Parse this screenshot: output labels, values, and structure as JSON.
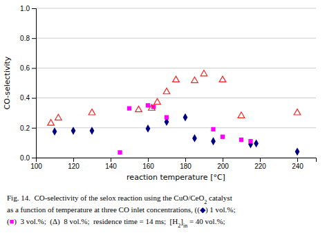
{
  "chart_data": {
    "type": "scatter",
    "xlabel": "reaction temperature [°C]",
    "ylabel": "CO-selectivity",
    "xlim": [
      100,
      250
    ],
    "ylim": [
      0,
      1.0
    ],
    "xticks": [
      100,
      120,
      140,
      160,
      180,
      200,
      220,
      240
    ],
    "yticks": [
      {
        "value": 0,
        "label": "0.0"
      },
      0.2,
      0.4,
      0.6,
      0.8,
      {
        "value": 1.0,
        "label": "1.0"
      }
    ],
    "grid": "y",
    "series": [
      {
        "color": "#000080",
        "marker": "diamond",
        "x": [
          110,
          120,
          130,
          160,
          170,
          180,
          185,
          195,
          215,
          218,
          240
        ],
        "values": [
          0.175,
          0.18,
          0.18,
          0.195,
          0.24,
          0.27,
          0.13,
          0.11,
          0.09,
          0.095,
          0.04
        ]
      },
      {
        "color": "#FF00FF",
        "marker": "square",
        "x": [
          145,
          150,
          160,
          163,
          170,
          195,
          200,
          210,
          215
        ],
        "values": [
          0.035,
          0.33,
          0.35,
          0.34,
          0.27,
          0.19,
          0.14,
          0.12,
          0.11
        ]
      },
      {
        "color": "#FF2020",
        "marker": "triangle-open",
        "x": [
          108,
          112,
          130,
          155,
          162,
          165,
          170,
          175,
          185,
          190,
          200,
          210,
          240
        ],
        "values": [
          0.23,
          0.265,
          0.3,
          0.32,
          0.33,
          0.37,
          0.44,
          0.52,
          0.515,
          0.56,
          0.52,
          0.28,
          0.3
        ]
      }
    ],
    "annotations": [
      [
        {
          "text": "Fig. 14.  CO-selectivity of the selox reaction using the CuO/CeO"
        },
        {
          "text": "2",
          "sub": true
        },
        {
          "text": " catalyst"
        }
      ],
      [
        {
          "text": "as a function of temperature at three CO inlet concentrations, (("
        },
        {
          "text": "◆",
          "color": "#000080"
        },
        {
          "text": ") 1 vol.%;"
        }
      ],
      [
        {
          "text": "("
        },
        {
          "text": "■",
          "color": "#FF00FF"
        },
        {
          "text": ")  3 vol.%;  (Δ)  8 vol.%;  residence time = 14 ms;  [H"
        },
        {
          "text": "2",
          "sub": true
        },
        {
          "text": "]"
        },
        {
          "text": "in",
          "sub": true
        },
        {
          "text": " = 40 vol.%;"
        }
      ]
    ]
  }
}
